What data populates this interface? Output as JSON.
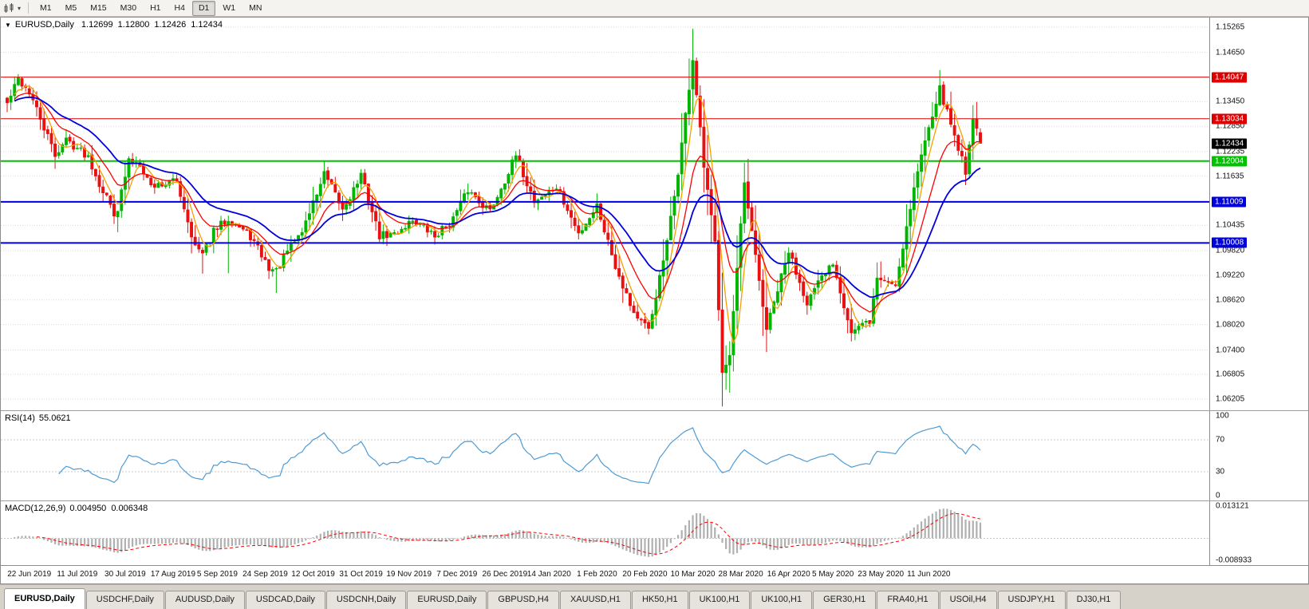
{
  "toolbar": {
    "timeframes": [
      "M1",
      "M5",
      "M15",
      "M30",
      "H1",
      "H4",
      "D1",
      "W1",
      "MN"
    ],
    "active_timeframe": "D1"
  },
  "chart": {
    "symbol_period": "EURUSD,Daily",
    "ohlc": {
      "open": "1.12699",
      "high": "1.12800",
      "low": "1.12426",
      "close": "1.12434"
    }
  },
  "chart_data": {
    "type": "candlestick",
    "symbol": "EURUSD",
    "timeframe": "Daily",
    "up_color": "#00B400",
    "down_color": "#E81010",
    "grid_color": "#DADADA",
    "price_axis": {
      "min": 1.06205,
      "max": 1.15265,
      "ticks": [
        "1.15265",
        "1.14650",
        "1.13450",
        "1.12850",
        "1.12235",
        "1.11635",
        "1.10435",
        "1.09820",
        "1.09220",
        "1.08620",
        "1.08020",
        "1.07400",
        "1.06805",
        "1.06205"
      ]
    },
    "levels": [
      {
        "label": "1.14047",
        "price": 1.14047,
        "color": "#DD0000",
        "width": 1
      },
      {
        "label": "1.13034",
        "price": 1.13034,
        "color": "#DD0000",
        "width": 1
      },
      {
        "label": "1.12004",
        "price": 1.12004,
        "color": "#00C200",
        "width": 2
      },
      {
        "label": "1.11009",
        "price": 1.11009,
        "color": "#0000DD",
        "width": 2
      },
      {
        "label": "1.10008",
        "price": 1.10008,
        "color": "#0000DD",
        "width": 2
      }
    ],
    "last_price": {
      "label": "1.12434",
      "price": 1.12434,
      "color": "#000000"
    },
    "x_labels": [
      "22 Jun 2019",
      "11 Jul 2019",
      "30 Jul 2019",
      "17 Aug 2019",
      "5 Sep 2019",
      "24 Sep 2019",
      "12 Oct 2019",
      "31 Oct 2019",
      "19 Nov 2019",
      "7 Dec 2019",
      "26 Dec 2019",
      "14 Jan 2020",
      "1 Feb 2020",
      "20 Feb 2020",
      "10 Mar 2020",
      "28 Mar 2020",
      "16 Apr 2020",
      "5 May 2020",
      "23 May 2020",
      "11 Jun 2020"
    ],
    "n_candles": 265,
    "seed": 42,
    "candles_keyframes": [
      [
        0,
        1.134
      ],
      [
        3,
        1.14
      ],
      [
        6,
        1.1368
      ],
      [
        13,
        1.1215
      ],
      [
        16,
        1.1253
      ],
      [
        22,
        1.1212
      ],
      [
        25,
        1.1147
      ],
      [
        29,
        1.1076
      ],
      [
        30,
        1.1085
      ],
      [
        33,
        1.12
      ],
      [
        36,
        1.1197
      ],
      [
        39,
        1.114
      ],
      [
        46,
        1.1152
      ],
      [
        51,
        1.0992
      ],
      [
        53,
        1.0972
      ],
      [
        56,
        1.1028
      ],
      [
        60,
        1.1062
      ],
      [
        66,
        1.1017
      ],
      [
        71,
        1.094
      ],
      [
        73,
        1.0932
      ],
      [
        76,
        1.098
      ],
      [
        80,
        1.103
      ],
      [
        86,
        1.1168
      ],
      [
        91,
        1.1082
      ],
      [
        96,
        1.1165
      ],
      [
        101,
        1.1018
      ],
      [
        105,
        1.1022
      ],
      [
        110,
        1.1058
      ],
      [
        116,
        1.1017
      ],
      [
        121,
        1.106
      ],
      [
        125,
        1.113
      ],
      [
        131,
        1.1079
      ],
      [
        138,
        1.1212
      ],
      [
        143,
        1.1103
      ],
      [
        149,
        1.1136
      ],
      [
        155,
        1.1023
      ],
      [
        160,
        1.1093
      ],
      [
        165,
        1.0946
      ],
      [
        170,
        1.0831
      ],
      [
        174,
        1.0786
      ],
      [
        179,
        1.1
      ],
      [
        182,
        1.1174
      ],
      [
        186,
        1.1448
      ],
      [
        189,
        1.1185
      ],
      [
        192,
        1.1
      ],
      [
        194,
        1.0694
      ],
      [
        196,
        1.0727
      ],
      [
        200,
        1.1141
      ],
      [
        203,
        1.0965
      ],
      [
        206,
        1.0791
      ],
      [
        212,
        1.098
      ],
      [
        217,
        1.0858
      ],
      [
        224,
        1.0955
      ],
      [
        229,
        1.0783
      ],
      [
        234,
        1.081
      ],
      [
        236,
        1.0915
      ],
      [
        241,
        1.09
      ],
      [
        246,
        1.1135
      ],
      [
        250,
        1.129
      ],
      [
        253,
        1.1375
      ],
      [
        257,
        1.1263
      ],
      [
        260,
        1.1177
      ],
      [
        262,
        1.1308
      ],
      [
        264,
        1.1243
      ]
    ],
    "wick_overrides": [
      {
        "i": 3,
        "high": 1.1412
      },
      {
        "i": 30,
        "low": 1.1027
      },
      {
        "i": 53,
        "low": 1.0926
      },
      {
        "i": 60,
        "low": 1.0927
      },
      {
        "i": 73,
        "low": 1.0879
      },
      {
        "i": 174,
        "low": 1.0778
      },
      {
        "i": 186,
        "high": 1.1495
      },
      {
        "i": 194,
        "low": 1.0655
      },
      {
        "i": 196,
        "low": 1.0636
      },
      {
        "i": 253,
        "high": 1.1422
      }
    ],
    "last_candle": {
      "o": 1.12699,
      "h": 1.128,
      "l": 1.12426,
      "c": 1.12434
    },
    "moving_averages": [
      {
        "name": "ma-fast-orange",
        "type": "sma",
        "period": 5,
        "color": "#F5A000",
        "width": 1.3
      },
      {
        "name": "ma-mid-red",
        "type": "ema",
        "period": 12,
        "color": "#FF0000",
        "width": 1.3
      },
      {
        "name": "ma-slow-blue",
        "type": "ema",
        "period": 26,
        "color": "#0000DC",
        "width": 1.8
      }
    ],
    "indicators": {
      "rsi": {
        "label": "RSI(14)",
        "value": "55.0621",
        "period": 14,
        "color": "#4E9BD4",
        "levels": [
          "100",
          "70",
          "30",
          "0"
        ],
        "level_lines": [
          70,
          30
        ]
      },
      "macd": {
        "label": "MACD(12,26,9)",
        "value_main": "0.004950",
        "value_signal": "0.006348",
        "fast": 12,
        "slow": 26,
        "signal_period": 9,
        "scale_max_label": "0.013121",
        "scale_min_label": "-0.008933",
        "scale_max": 0.013121,
        "scale_min": -0.008933,
        "hist_color": "#B0B0B0",
        "signal_color": "#FF0000"
      }
    }
  },
  "tabs": {
    "items": [
      "EURUSD,Daily",
      "USDCHF,Daily",
      "AUDUSD,Daily",
      "USDCAD,Daily",
      "USDCNH,Daily",
      "EURUSD,Daily",
      "GBPUSD,H4",
      "XAUUSD,H1",
      "HK50,H1",
      "UK100,H1",
      "UK100,H1",
      "GER30,H1",
      "FRA40,H1",
      "USOil,H4",
      "USDJPY,H1",
      "DJ30,H1"
    ],
    "active_index": 0
  }
}
